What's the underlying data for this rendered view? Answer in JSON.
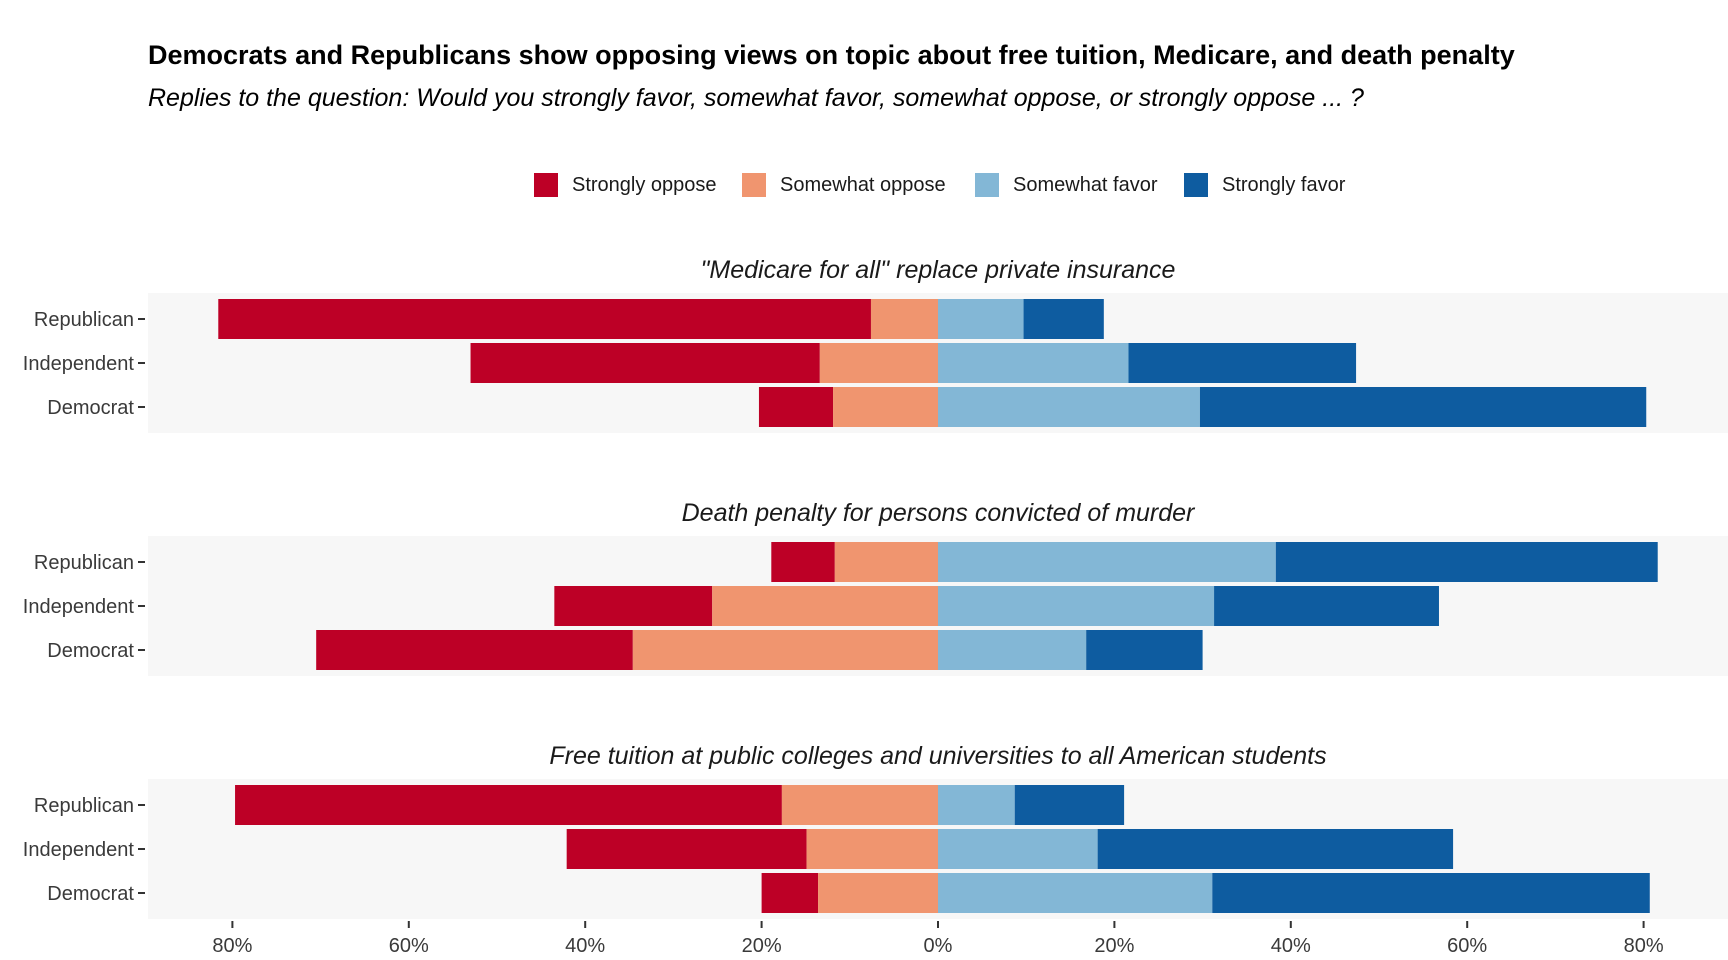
{
  "chart_data": {
    "type": "bar",
    "orientation": "horizontal-diverging-stacked",
    "title": "Democrats and Republicans show opposing views on topic about free tuition, Medicare, and death penalty",
    "subtitle": "Replies to the question: Would you strongly favor, somewhat favor, somewhat oppose, or strongly oppose ... ?",
    "legend": {
      "placement": "top-center",
      "entries": [
        {
          "name": "Strongly oppose",
          "color": "#BD0026"
        },
        {
          "name": "Somewhat oppose",
          "color": "#F0956F"
        },
        {
          "name": "Somewhat favor",
          "color": "#83B7D6"
        },
        {
          "name": "Strongly favor",
          "color": "#0E5CA0"
        }
      ]
    },
    "categories": [
      "Republican",
      "Independent",
      "Democrat"
    ],
    "x_ticks": [
      -80,
      -60,
      -40,
      -20,
      0,
      20,
      40,
      60,
      80
    ],
    "x_tick_labels": [
      "80%",
      "60%",
      "40%",
      "20%",
      "0%",
      "20%",
      "40%",
      "60%",
      "80%"
    ],
    "xlim": [
      -90,
      90
    ],
    "grid": false,
    "facets": [
      {
        "title": "\"Medicare for all\" replace private insurance",
        "rows": [
          {
            "category": "Republican",
            "strongly_oppose": 74,
            "somewhat_oppose": 7.6,
            "somewhat_favor": 9.7,
            "strongly_favor": 9.1
          },
          {
            "category": "Independent",
            "strongly_oppose": 39.6,
            "somewhat_oppose": 13.4,
            "somewhat_favor": 21.6,
            "strongly_favor": 25.8
          },
          {
            "category": "Democrat",
            "strongly_oppose": 8.4,
            "somewhat_oppose": 11.9,
            "somewhat_favor": 29.7,
            "strongly_favor": 50.6
          }
        ]
      },
      {
        "title": "Death penalty for persons convicted of murder",
        "rows": [
          {
            "category": "Republican",
            "strongly_oppose": 7.2,
            "somewhat_oppose": 11.7,
            "somewhat_favor": 38.3,
            "strongly_favor": 43.3
          },
          {
            "category": "Independent",
            "strongly_oppose": 17.9,
            "somewhat_oppose": 25.6,
            "somewhat_favor": 31.3,
            "strongly_favor": 25.5
          },
          {
            "category": "Democrat",
            "strongly_oppose": 35.9,
            "somewhat_oppose": 34.6,
            "somewhat_favor": 16.8,
            "strongly_favor": 13.2
          }
        ]
      },
      {
        "title": "Free tuition at public colleges and universities to all American students",
        "rows": [
          {
            "category": "Republican",
            "strongly_oppose": 62,
            "somewhat_oppose": 17.7,
            "somewhat_favor": 8.7,
            "strongly_favor": 12.4
          },
          {
            "category": "Independent",
            "strongly_oppose": 27.2,
            "somewhat_oppose": 14.9,
            "somewhat_favor": 18.1,
            "strongly_favor": 40.3
          },
          {
            "category": "Democrat",
            "strongly_oppose": 6.4,
            "somewhat_oppose": 13.6,
            "somewhat_favor": 31.1,
            "strongly_favor": 49.6
          }
        ]
      }
    ]
  }
}
